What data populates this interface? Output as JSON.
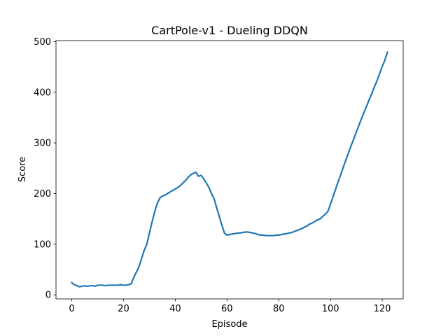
{
  "chart_data": {
    "type": "line",
    "title": "CartPole-v1 - Dueling DDQN",
    "x_label": "Episode",
    "y_label": "Score",
    "x": [
      0,
      1,
      2,
      3,
      4,
      5,
      6,
      7,
      8,
      9,
      10,
      11,
      12,
      13,
      14,
      15,
      16,
      17,
      18,
      19,
      20,
      21,
      22,
      23,
      24,
      25,
      26,
      27,
      28,
      29,
      30,
      31,
      32,
      33,
      34,
      35,
      36,
      37,
      38,
      39,
      40,
      41,
      42,
      43,
      44,
      45,
      46,
      47,
      48,
      49,
      50,
      51,
      52,
      53,
      54,
      55,
      56,
      57,
      58,
      59,
      60,
      61,
      62,
      63,
      64,
      65,
      66,
      67,
      68,
      69,
      70,
      71,
      72,
      73,
      74,
      75,
      76,
      77,
      78,
      79,
      80,
      81,
      82,
      83,
      84,
      85,
      86,
      87,
      88,
      89,
      90,
      91,
      92,
      93,
      94,
      95,
      96,
      97,
      98,
      99,
      100,
      101,
      102,
      103,
      104,
      105,
      106,
      107,
      108,
      109,
      110,
      111,
      112,
      113,
      114,
      115,
      116,
      117,
      118,
      119,
      120,
      121,
      122
    ],
    "values": [
      24,
      20,
      18,
      16,
      17,
      18,
      17,
      18,
      18,
      17,
      19,
      19,
      19,
      18,
      19,
      19,
      19,
      19,
      19,
      20,
      19,
      19,
      20,
      22,
      35,
      45,
      56,
      72,
      88,
      100,
      122,
      143,
      163,
      180,
      191,
      195,
      197,
      200,
      203,
      206,
      209,
      212,
      216,
      221,
      226,
      232,
      237,
      240,
      242,
      234,
      236,
      229,
      221,
      212,
      200,
      190,
      172,
      155,
      138,
      122,
      118,
      119,
      120,
      121,
      122,
      122,
      123,
      124,
      124,
      123,
      122,
      121,
      119,
      118,
      118,
      117,
      117,
      117,
      117,
      118,
      118,
      119,
      120,
      121,
      122,
      123,
      125,
      127,
      129,
      131,
      134,
      136,
      140,
      142,
      145,
      148,
      150,
      155,
      159,
      165,
      179,
      194,
      209,
      224,
      238,
      253,
      267,
      281,
      295,
      308,
      322,
      335,
      348,
      361,
      373,
      386,
      398,
      411,
      423,
      437,
      451,
      463,
      479
    ],
    "color": "#1f77b4",
    "xlim": [
      -6.1,
      128.1
    ],
    "xticks": [
      0,
      20,
      40,
      60,
      80,
      100,
      120
    ],
    "ylim": [
      -8,
      502
    ],
    "yticks": [
      0,
      100,
      200,
      300,
      400,
      500
    ],
    "grid": false
  }
}
